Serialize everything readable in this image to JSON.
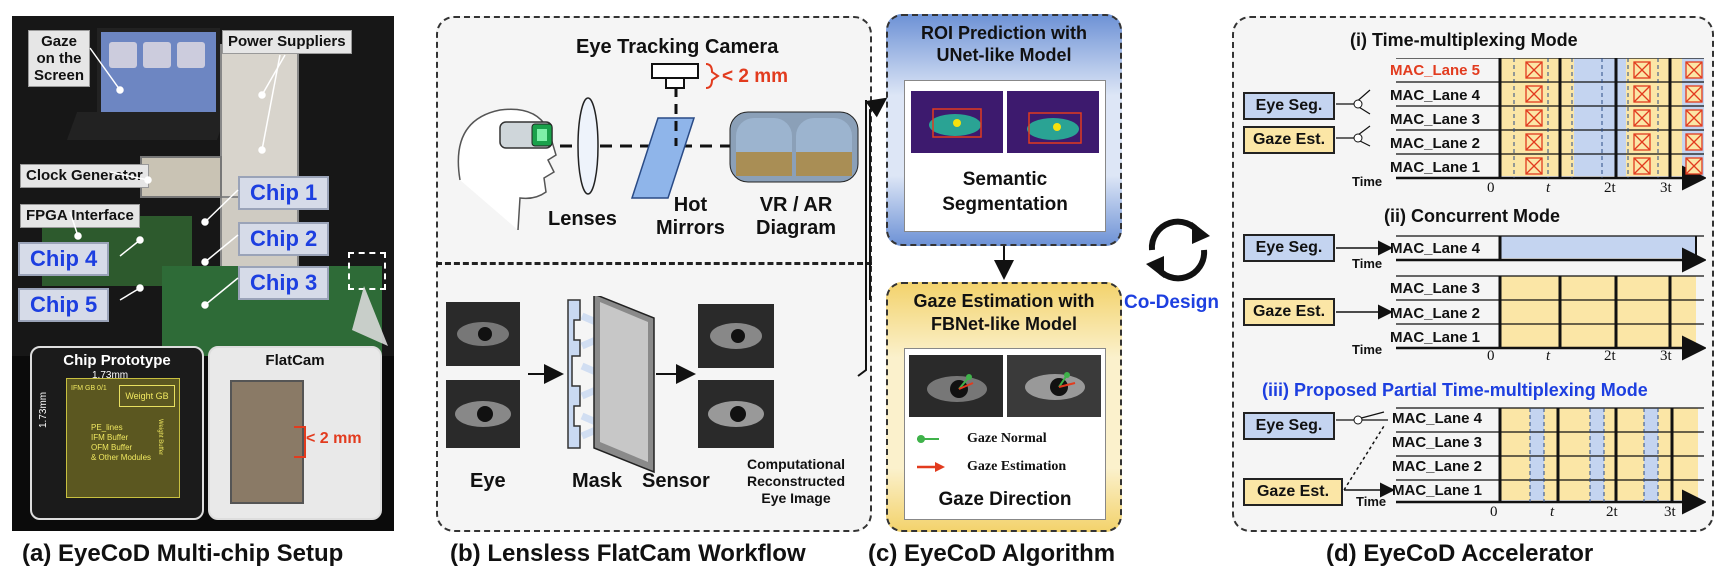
{
  "colors": {
    "accent_blue": "#1d3fe0",
    "red": "#e23b1e",
    "eyeseg": "#c4d4f0",
    "gazeest": "#fbe6a6",
    "algo_top": "#6f93d6",
    "algo_bot": "#f3d36e"
  },
  "captions": {
    "a": "(a) EyeCoD Multi-chip Setup",
    "b": "(b) Lensless FlatCam Workflow",
    "c": "(c) EyeCoD Algorithm",
    "d": "(d) EyeCoD Accelerator"
  },
  "setup": {
    "gaze_screen": "Gaze\non the\nScreen",
    "power": "Power Suppliers",
    "clock": "Clock Generator",
    "fpga": "FPGA Interface",
    "chips": [
      "Chip 1",
      "Chip 2",
      "Chip 3",
      "Chip 4",
      "Chip 5"
    ],
    "chip_proto_title": "Chip Prototype",
    "chip_dim_h": "1.73mm",
    "chip_dim_v": "1.73mm",
    "chip_blocks": [
      "Weight GB",
      "IFM GB 0/1",
      "PE_lines",
      "IFM Buffer",
      "OFM Buffer",
      "& Other Modules",
      "Weight Buffer"
    ],
    "flatcam_title": "FlatCam",
    "flatcam_size": "< 2 mm"
  },
  "workflow": {
    "camera": "Eye Tracking Camera",
    "size": "< 2 mm",
    "lenses": "Lenses",
    "hot_mirrors": "Hot\nMirrors",
    "vrar": "VR / AR\nDiagram",
    "eye": "Eye",
    "mask": "Mask",
    "sensor": "Sensor",
    "recon": "Computational\nReconstructed\nEye Image"
  },
  "algorithm": {
    "roi_title": "ROI Prediction with\nUNet-like Model",
    "seg_label": "Semantic\nSegmentation",
    "gaze_title": "Gaze Estimation with\nFBNet-like Model",
    "legend_normal": "Gaze Normal",
    "legend_est": "Gaze Estimation",
    "gaze_dir": "Gaze Direction",
    "codesign": "Co-Design"
  },
  "accelerator": {
    "mode1": "(i) Time-multiplexing Mode",
    "mode2": "(ii) Concurrent Mode",
    "mode3": "(iii) Proposed Partial Time-multiplexing Mode",
    "eye_seg": "Eye Seg.",
    "gaze_est": "Gaze Est.",
    "time": "Time",
    "lanes5": [
      "MAC_Lane 5",
      "MAC_Lane 4",
      "MAC_Lane 3",
      "MAC_Lane 2",
      "MAC_Lane 1"
    ],
    "lane4": "MAC_Lane 4",
    "lanes3": [
      "MAC_Lane 3",
      "MAC_Lane 2",
      "MAC_Lane 1"
    ],
    "lanes4": [
      "MAC_Lane 4",
      "MAC_Lane 3",
      "MAC_Lane 2",
      "MAC_Lane 1"
    ],
    "ticks": [
      "0",
      "t",
      "2t",
      "3t"
    ]
  }
}
